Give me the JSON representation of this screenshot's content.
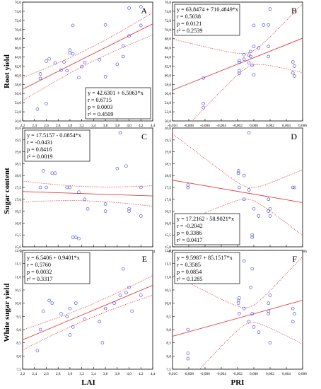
{
  "figure": {
    "row_labels": [
      "Root yield",
      "Sugar content",
      "White sugar yield"
    ],
    "x_labels": [
      "LAI",
      "PRI"
    ]
  },
  "chart_data": [
    {
      "panel": "A",
      "type": "scatter",
      "xlim": [
        2.2,
        4.4
      ],
      "ylim": [
        50,
        76
      ],
      "xticks": [
        "2,2",
        "2,4",
        "2,6",
        "2,8",
        "3,0",
        "3,2",
        "3,4",
        "3,6",
        "3,8",
        "4,0",
        "4,2",
        "4,4"
      ],
      "yticks": [
        "50,0",
        "52,0",
        "54,0",
        "56,0",
        "58,0",
        "60,0",
        "62,0",
        "64,0",
        "66,0",
        "68,0",
        "70,0",
        "72,0",
        "74,0",
        "76,0"
      ],
      "tick_x_step": 0.2,
      "tick_y_step": 2,
      "points": [
        [
          2.45,
          52.6
        ],
        [
          2.5,
          59.3
        ],
        [
          2.5,
          60.3
        ],
        [
          2.6,
          53.8
        ],
        [
          2.6,
          63.1
        ],
        [
          2.65,
          63.6
        ],
        [
          2.75,
          62.7
        ],
        [
          2.85,
          61.1
        ],
        [
          2.9,
          62.9
        ],
        [
          2.95,
          61.0
        ],
        [
          3.0,
          64.9
        ],
        [
          3.0,
          65.5
        ],
        [
          3.05,
          64.7
        ],
        [
          3.05,
          70.9
        ],
        [
          3.15,
          59.5
        ],
        [
          3.2,
          61.9
        ],
        [
          3.25,
          62.8
        ],
        [
          3.5,
          63.4
        ],
        [
          3.6,
          59.7
        ],
        [
          3.6,
          71.0
        ],
        [
          3.8,
          62.4
        ],
        [
          3.9,
          64.1
        ],
        [
          3.9,
          66.4
        ],
        [
          4.0,
          74.7
        ],
        [
          4.0,
          68.6
        ],
        [
          4.2,
          75.0
        ],
        [
          4.2,
          70.9
        ]
      ],
      "fit": [
        42.6301,
        6.5063
      ],
      "ci": {
        "se": 1.6,
        "mean": 3.32,
        "spread": 3.2
      },
      "label_pos": "top-right",
      "stats": [
        "y = 42.6301 + 6.5063*x",
        "r = 0.6715",
        "p = 0.0003",
        "r² = 0.4509"
      ],
      "stats_pos": "bottom-right"
    },
    {
      "panel": "B",
      "type": "scatter",
      "xlim": [
        -0.01,
        0.006
      ],
      "ylim": [
        50,
        76
      ],
      "xticks": [
        "-0,010",
        "-0,008",
        "-0,006",
        "-0,004",
        "-0,002",
        "0,000",
        "0,002",
        "0,004",
        "0,006"
      ],
      "yticks": [
        "50,0",
        "52,0",
        "54,0",
        "56,0",
        "58,0",
        "60,0",
        "62,0",
        "64,0",
        "66,0",
        "68,0",
        "70,0",
        "72,0",
        "74,0",
        "76,0"
      ],
      "tick_x_step": 0.002,
      "tick_y_step": 2,
      "points": [
        [
          -0.0062,
          52.9
        ],
        [
          -0.0062,
          53.8
        ],
        [
          -0.0062,
          59.4
        ],
        [
          -0.0018,
          60.4
        ],
        [
          -0.0018,
          61.0
        ],
        [
          -0.0018,
          62.8
        ],
        [
          -0.0018,
          63.2
        ],
        [
          -0.0012,
          63.5
        ],
        [
          -0.0012,
          64.5
        ],
        [
          -0.0006,
          62.7
        ],
        [
          -0.0006,
          64.4
        ],
        [
          -0.0004,
          64.1
        ],
        [
          -0.0004,
          65.2
        ],
        [
          -0.0002,
          62.2
        ],
        [
          0.0,
          66.3
        ],
        [
          0.0,
          70.9
        ],
        [
          0.0,
          60.1
        ],
        [
          0.0006,
          66.0
        ],
        [
          0.0012,
          71.0
        ],
        [
          0.0018,
          64.1
        ],
        [
          0.0018,
          66.3
        ],
        [
          0.0018,
          71.0
        ],
        [
          0.002,
          74.5
        ],
        [
          0.0048,
          62.9
        ],
        [
          0.0048,
          60.5
        ],
        [
          0.005,
          59.8
        ],
        [
          0.005,
          62.0
        ]
      ],
      "fit": [
        63.8474,
        710.4849
      ],
      "ci": {
        "se": 1.5,
        "mean": -0.0004,
        "spread": 0.0045
      },
      "label_pos": "top-right",
      "stats": [
        "y = 63.8474 + 710.4849*x",
        "r = 0.5038",
        "p = 0.0121",
        "r² = 0.2539"
      ],
      "stats_pos": "top-left"
    },
    {
      "panel": "C",
      "type": "scatter",
      "xlim": [
        2.2,
        4.4
      ],
      "ylim": [
        15,
        20
      ],
      "xticks": [
        "2,2",
        "2,4",
        "2,6",
        "2,8",
        "3,0",
        "3,2",
        "3,4",
        "3,6",
        "3,8",
        "4,0",
        "4,2",
        "4,4"
      ],
      "yticks": [
        "15,0",
        "15,5",
        "16,0",
        "16,5",
        "17,0",
        "17,5",
        "18,0",
        "18,5",
        "19,0",
        "19,5",
        "20,0"
      ],
      "tick_x_step": 0.2,
      "tick_y_step": 0.5,
      "points": [
        [
          2.5,
          17.5
        ],
        [
          2.55,
          18.2
        ],
        [
          2.6,
          17.5
        ],
        [
          2.7,
          18.1
        ],
        [
          2.75,
          18.1
        ],
        [
          2.95,
          17.5
        ],
        [
          3.0,
          17.5
        ],
        [
          3.05,
          15.4
        ],
        [
          3.1,
          15.4
        ],
        [
          3.15,
          15.35
        ],
        [
          3.15,
          17.3
        ],
        [
          3.25,
          17.0
        ],
        [
          3.3,
          16.6
        ],
        [
          3.6,
          16.5
        ],
        [
          3.6,
          16.8
        ],
        [
          3.8,
          18.3
        ],
        [
          3.85,
          19.8
        ],
        [
          3.95,
          18.4
        ],
        [
          4.0,
          16.6
        ],
        [
          4.0,
          16.5
        ],
        [
          4.2,
          16.3
        ],
        [
          4.2,
          17.5
        ]
      ],
      "fit": [
        17.5157,
        -0.0854
      ],
      "ci": {
        "se": 0.3,
        "mean": 3.32,
        "spread": 3.6
      },
      "label_pos": "top-right",
      "stats": [
        "y = 17.5157 - 0.0854*x",
        "r = -0.0431",
        "p = 0.8416",
        "r² = 0.0019"
      ],
      "stats_pos": "top-left"
    },
    {
      "panel": "D",
      "type": "scatter",
      "xlim": [
        -0.01,
        0.006
      ],
      "ylim": [
        15,
        20
      ],
      "xticks": [
        "-0,010",
        "-0,008",
        "-0,006",
        "-0,004",
        "-0,002",
        "0,000",
        "0,002",
        "0,004",
        "0,006"
      ],
      "yticks": [
        "15,0",
        "15,5",
        "16,0",
        "16,5",
        "17,0",
        "17,5",
        "18,0",
        "18,5",
        "19,0",
        "19,5",
        "20,0"
      ],
      "tick_x_step": 0.002,
      "tick_y_step": 0.5,
      "points": [
        [
          -0.0081,
          17.5
        ],
        [
          -0.0081,
          17.6
        ],
        [
          -0.0019,
          18.1
        ],
        [
          -0.0019,
          18.1
        ],
        [
          -0.0019,
          18.2
        ],
        [
          -0.0018,
          17.5
        ],
        [
          -0.0012,
          18.0
        ],
        [
          -0.0012,
          17.0
        ],
        [
          -0.0006,
          19.8
        ],
        [
          -0.0006,
          17.4
        ],
        [
          -0.0002,
          15.4
        ],
        [
          -0.0002,
          15.5
        ],
        [
          0.0,
          16.6
        ],
        [
          0.0006,
          16.3
        ],
        [
          0.0018,
          16.5
        ],
        [
          0.0018,
          17.0
        ],
        [
          0.002,
          16.6
        ],
        [
          0.002,
          16.3
        ],
        [
          0.0048,
          17.5
        ],
        [
          0.005,
          17.5
        ]
      ],
      "fit": [
        17.2162,
        -58.9021
      ],
      "ci": {
        "se": 0.25,
        "mean": -0.0006,
        "spread": 0.0042
      },
      "label_pos": "top-right",
      "stats": [
        "y = 17.2162 - 58.9021*x",
        "r = -0.2042",
        "p = 0.3386",
        "r² = 0.0417"
      ],
      "stats_pos": "bottom-left"
    },
    {
      "panel": "E",
      "type": "scatter",
      "xlim": [
        2.2,
        4.4
      ],
      "ylim": [
        7.5,
        12
      ],
      "xticks": [
        "2,2",
        "2,4",
        "2,6",
        "2,8",
        "3,0",
        "3,2",
        "3,4",
        "3,6",
        "3,8",
        "4,0",
        "4,2",
        "4,4"
      ],
      "yticks": [
        "7,5",
        "8,0",
        "8,5",
        "9,0",
        "9,5",
        "10,0",
        "10,5",
        "11,0",
        "11,5",
        "12,0"
      ],
      "tick_x_step": 0.2,
      "tick_y_step": 0.5,
      "points": [
        [
          2.45,
          8.2
        ],
        [
          2.5,
          9.0
        ],
        [
          2.55,
          9.7
        ],
        [
          2.65,
          10.1
        ],
        [
          2.7,
          10.0
        ],
        [
          2.85,
          9.6
        ],
        [
          2.95,
          9.5
        ],
        [
          3.0,
          9.8
        ],
        [
          3.0,
          8.8
        ],
        [
          3.05,
          9.1
        ],
        [
          3.1,
          10.0
        ],
        [
          3.1,
          11.6
        ],
        [
          3.25,
          9.4
        ],
        [
          3.5,
          9.3
        ],
        [
          3.55,
          8.5
        ],
        [
          3.6,
          9.8
        ],
        [
          3.75,
          10.0
        ],
        [
          3.85,
          10.3
        ],
        [
          3.9,
          11.3
        ],
        [
          3.95,
          10.4
        ],
        [
          4.0,
          10.6
        ],
        [
          4.05,
          9.7
        ],
        [
          4.2,
          10.3
        ]
      ],
      "fit": [
        6.5406,
        0.9401
      ],
      "ci": {
        "se": 0.25,
        "mean": 3.32,
        "spread": 3.4
      },
      "label_pos": "top-right",
      "stats": [
        "y = 6.5406 + 0.9401*x",
        "r = 0.5760",
        "p = 0.0032",
        "r² = 0.3317"
      ],
      "stats_pos": "top-left"
    },
    {
      "panel": "F",
      "type": "scatter",
      "xlim": [
        -0.01,
        0.006
      ],
      "ylim": [
        7.5,
        12
      ],
      "xticks": [
        "-0,010",
        "-0,008",
        "-0,006",
        "-0,004",
        "-0,002",
        "0,000",
        "0,002",
        "0,004",
        "0,006"
      ],
      "yticks": [
        "7,5",
        "8,0",
        "8,5",
        "9,0",
        "9,5",
        "10,0",
        "10,5",
        "11,0",
        "11,5",
        "12,0"
      ],
      "tick_x_step": 0.002,
      "tick_y_step": 0.5,
      "points": [
        [
          -0.0081,
          7.9
        ],
        [
          -0.0081,
          8.1
        ],
        [
          -0.0081,
          9.0
        ],
        [
          -0.0019,
          10.0
        ],
        [
          -0.0019,
          10.1
        ],
        [
          -0.0018,
          10.2
        ],
        [
          -0.0018,
          9.6
        ],
        [
          -0.0012,
          9.8
        ],
        [
          -0.0012,
          11.6
        ],
        [
          -0.0006,
          9.3
        ],
        [
          -0.0004,
          10.6
        ],
        [
          -0.0002,
          11.3
        ],
        [
          -0.0002,
          9.6
        ],
        [
          0.0,
          9.1
        ],
        [
          0.0006,
          8.9
        ],
        [
          0.0018,
          9.6
        ],
        [
          0.0018,
          9.7
        ],
        [
          0.0018,
          10.0
        ],
        [
          0.002,
          10.3
        ],
        [
          0.002,
          8.5
        ],
        [
          0.0048,
          9.8
        ],
        [
          0.0048,
          9.3
        ],
        [
          0.005,
          9.6
        ]
      ],
      "fit": [
        9.5987,
        85.1517
      ],
      "ci": {
        "se": 0.3,
        "mean": -0.0006,
        "spread": 0.0042
      },
      "label_pos": "top-right",
      "stats": [
        "y = 9.5987 + 85.1517*x",
        "r = 0.3585",
        "p = 0.0854",
        "r² = 0.1285"
      ],
      "stats_pos": "top-left"
    }
  ]
}
